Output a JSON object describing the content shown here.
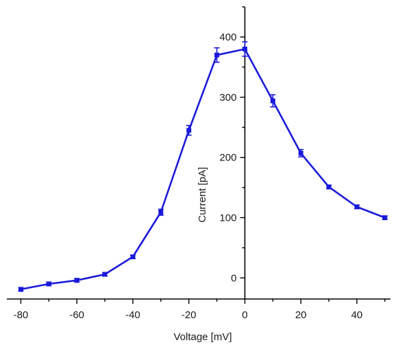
{
  "chart_data": {
    "type": "line",
    "title": "",
    "xlabel": "Voltage [mV]",
    "ylabel": "Current [pA]",
    "xlim": [
      -85,
      52
    ],
    "ylim": [
      -35,
      450
    ],
    "x_ticks": [
      -80,
      -60,
      -40,
      -20,
      0,
      20,
      40
    ],
    "y_ticks": [
      0,
      100,
      200,
      300,
      400
    ],
    "x_tick_labels": [
      "-80",
      "-60",
      "-40",
      "-20",
      "0",
      "20",
      "40"
    ],
    "y_tick_labels": [
      "0",
      "100",
      "200",
      "300",
      "400"
    ],
    "grid": false,
    "legend": false,
    "color": "#1a1adb",
    "series": [
      {
        "x": [
          -80,
          -70,
          -60,
          -50,
          -40,
          -30,
          -20,
          -10,
          0,
          10,
          20,
          30,
          40,
          50
        ],
        "y": [
          -19,
          -10,
          -4,
          6,
          35,
          109,
          245,
          370,
          380,
          294,
          207,
          151,
          118,
          100
        ],
        "err": [
          3,
          3,
          3,
          3,
          3,
          5,
          8,
          12,
          12,
          10,
          6,
          3,
          3,
          3
        ]
      }
    ]
  }
}
